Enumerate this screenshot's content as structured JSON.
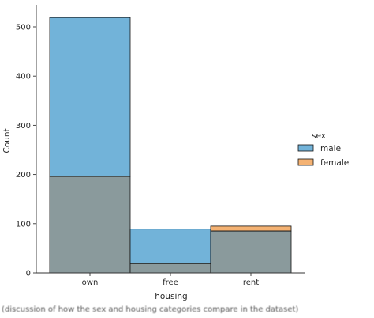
{
  "chart_data": {
    "type": "bar",
    "title": "",
    "xlabel": "housing",
    "ylabel": "Count",
    "categories": [
      "own",
      "free",
      "rent"
    ],
    "ylim": [
      0,
      545
    ],
    "yticks": [
      0,
      100,
      200,
      300,
      400,
      500
    ],
    "grid": false,
    "overlay": true,
    "legend": {
      "title": "sex",
      "position": "right",
      "entries": [
        "male",
        "female"
      ]
    },
    "series": [
      {
        "name": "male",
        "values": [
          519,
          89,
          85
        ]
      },
      {
        "name": "female",
        "values": [
          196,
          19,
          95
        ]
      }
    ]
  },
  "caption": "(discussion of how the sex and housing categories compare in the dataset)",
  "colors": {
    "male": "#72b3d9",
    "female": "#f4b273",
    "overlap": "#8a9a9c",
    "edge": "#111111",
    "text": "#262626"
  }
}
